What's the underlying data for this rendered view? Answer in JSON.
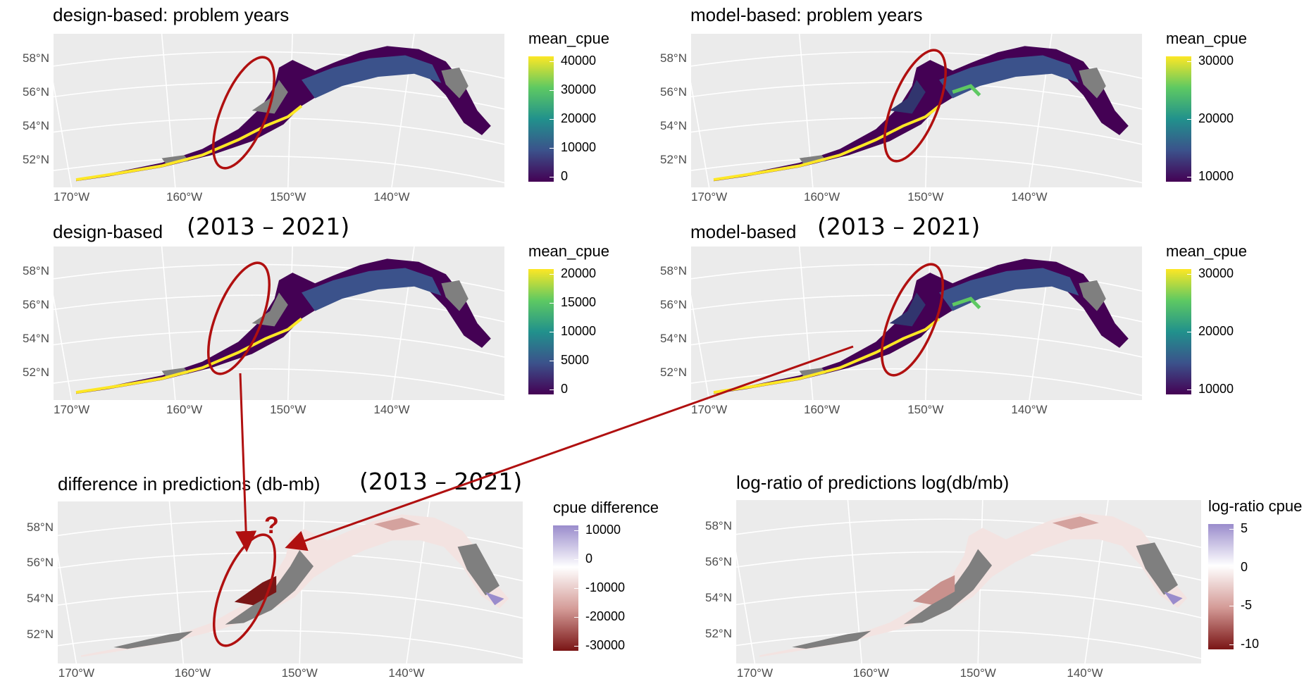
{
  "panels": [
    {
      "title": "design-based: problem years",
      "years": "",
      "y_labels": [
        "58°N",
        "56°N",
        "54°N",
        "52°N"
      ],
      "x_labels": [
        "170°W",
        "160°W",
        "150°W",
        "140°W"
      ],
      "legend": {
        "title": "mean_cpue",
        "scale": "viridis",
        "labels": [
          "40000",
          "30000",
          "20000",
          "10000",
          "0"
        ]
      }
    },
    {
      "title": "model-based: problem years",
      "years": "",
      "y_labels": [
        "58°N",
        "56°N",
        "54°N",
        "52°N"
      ],
      "x_labels": [
        "170°W",
        "160°W",
        "150°W",
        "140°W"
      ],
      "legend": {
        "title": "mean_cpue",
        "scale": "viridis",
        "labels": [
          "30000",
          "20000",
          "10000"
        ]
      }
    },
    {
      "title": "design-based",
      "years": "(2013 – 2021)",
      "y_labels": [
        "58°N",
        "56°N",
        "54°N",
        "52°N"
      ],
      "x_labels": [
        "170°W",
        "160°W",
        "150°W",
        "140°W"
      ],
      "legend": {
        "title": "mean_cpue",
        "scale": "viridis",
        "labels": [
          "20000",
          "15000",
          "10000",
          "5000",
          "0"
        ]
      }
    },
    {
      "title": "model-based",
      "years": "(2013 – 2021)",
      "y_labels": [
        "58°N",
        "56°N",
        "54°N",
        "52°N"
      ],
      "x_labels": [
        "170°W",
        "160°W",
        "150°W",
        "140°W"
      ],
      "legend": {
        "title": "mean_cpue",
        "scale": "viridis",
        "labels": [
          "30000",
          "20000",
          "10000"
        ]
      }
    },
    {
      "title": "difference in predictions (db-mb)",
      "years": "(2013 – 2021)",
      "y_labels": [
        "58°N",
        "56°N",
        "54°N",
        "52°N"
      ],
      "x_labels": [
        "170°W",
        "160°W",
        "150°W",
        "140°W"
      ],
      "legend": {
        "title": "cpue difference",
        "scale": "diverging",
        "labels": [
          "10000",
          "0",
          "-10000",
          "-20000",
          "-30000"
        ]
      }
    },
    {
      "title": "log-ratio of predictions log(db/mb)",
      "years": "",
      "y_labels": [
        "58°N",
        "56°N",
        "54°N",
        "52°N"
      ],
      "x_labels": [
        "170°W",
        "160°W",
        "150°W",
        "140°W"
      ],
      "legend": {
        "title": "log-ratio cpue",
        "scale": "diverging",
        "labels": [
          "5",
          "0",
          "-5",
          "-10"
        ]
      }
    }
  ],
  "annotation": {
    "question_mark": "?"
  },
  "colors": {
    "viridis": [
      "#fde725",
      "#5ec962",
      "#21918c",
      "#3b528b",
      "#440154"
    ],
    "diverging": [
      "#9a8ccc",
      "#ffffff",
      "#d49b97",
      "#7a1515"
    ],
    "annotation_red": "#b01010",
    "panel_bg": "#ebebeb",
    "na_gray": "#7f7f7f"
  }
}
